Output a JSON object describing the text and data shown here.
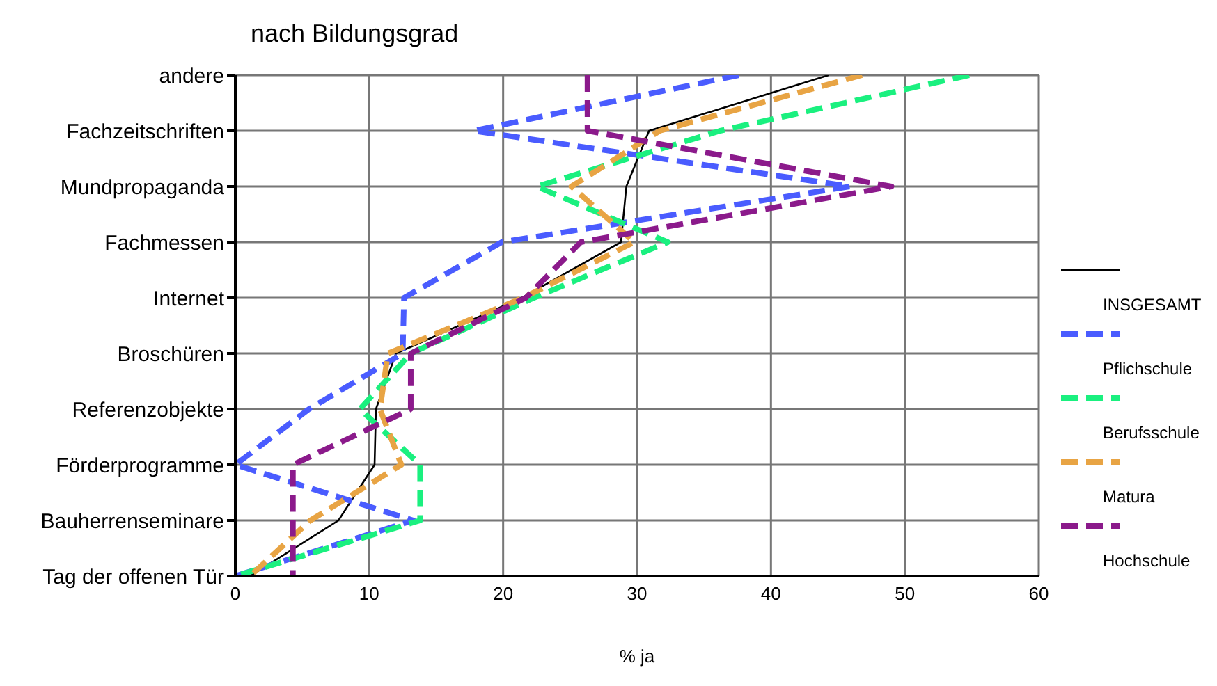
{
  "chart_data": {
    "type": "line",
    "title": "nach Bildungsgrad",
    "xlabel": "% ja",
    "categories": [
      "andere",
      "Fachzeitschriften",
      "Mundpropaganda",
      "Fachmessen",
      "Internet",
      "Broschüren",
      "Referenzobjekte",
      "Förderprogramme",
      "Bauherrenseminare",
      "Tag der offenen Tür"
    ],
    "series": [
      {
        "name": "INSGESAMT",
        "color": "#000000",
        "line_style": "solid",
        "values": [
          44.3,
          30.9,
          29.2,
          28.8,
          21.4,
          12.0,
          10.5,
          10.4,
          7.7,
          1.1
        ]
      },
      {
        "name": "Pflichschule",
        "color": "#4a5cff",
        "line_style": "dashed",
        "values": [
          37.6,
          17.8,
          45.9,
          19.9,
          12.6,
          12.5,
          5.5,
          0,
          13.3,
          0
        ]
      },
      {
        "name": "Berufsschule",
        "color": "#1af07f",
        "line_style": "dashed",
        "values": [
          54.8,
          36.2,
          22.5,
          32.3,
          22.3,
          13.1,
          9.3,
          13.8,
          13.8,
          0
        ]
      },
      {
        "name": "Matura",
        "color": "#e8a444",
        "line_style": "dashed",
        "values": [
          46.8,
          31.7,
          25.1,
          29.8,
          21.5,
          11.4,
          10.8,
          12.4,
          5.6,
          1.1
        ]
      },
      {
        "name": "Hochschule",
        "color": "#8b1a8b",
        "line_style": "dashed",
        "values": [
          26.3,
          26.3,
          49.0,
          25.8,
          21.7,
          13.1,
          13.1,
          4.3,
          4.3,
          4.3
        ]
      }
    ],
    "orientation": "horizontal",
    "xlim": [
      0,
      60
    ],
    "xticks": [
      0,
      10,
      20,
      30,
      40,
      50,
      60
    ],
    "grid": true,
    "legend": "right",
    "marker": "none"
  }
}
